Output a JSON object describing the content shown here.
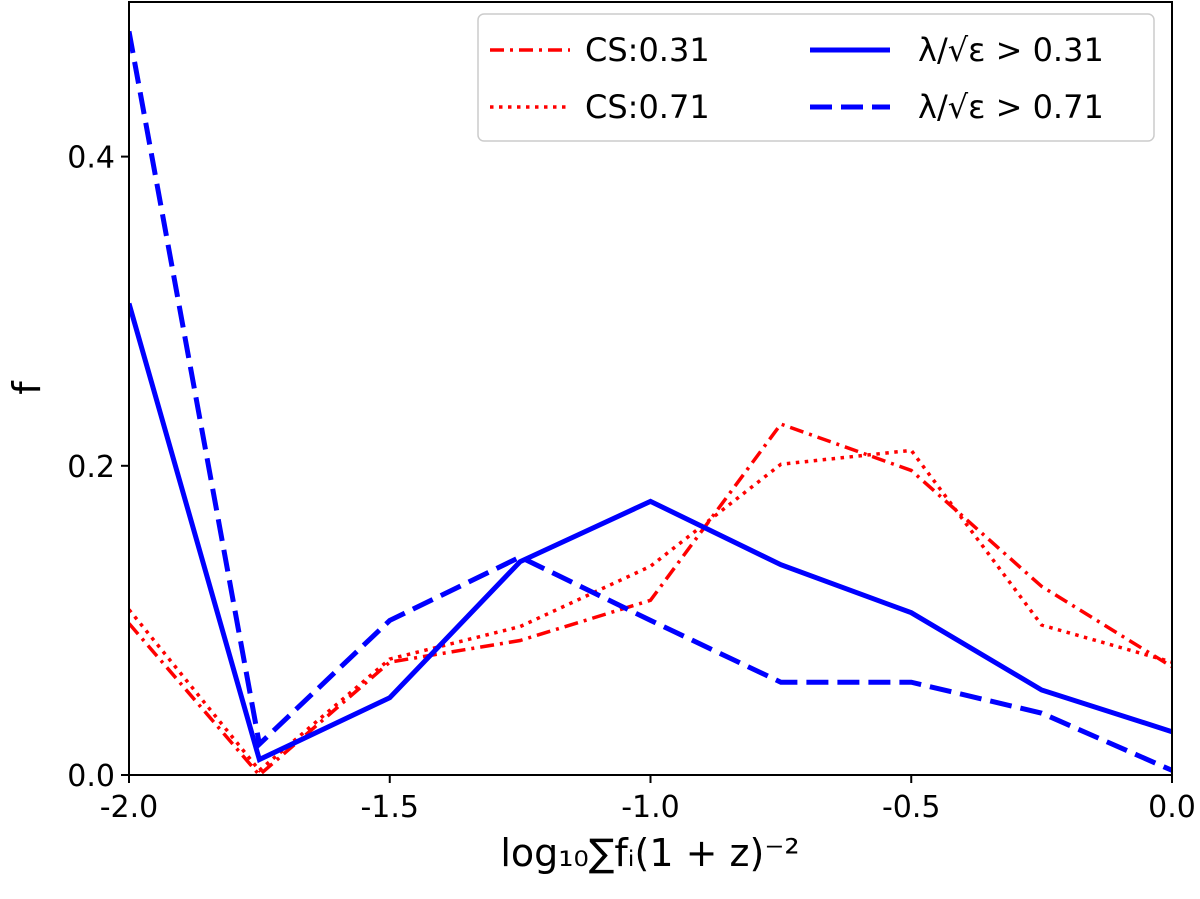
{
  "chart_data": {
    "type": "line",
    "title": "",
    "xlabel": "log₁₀∑fᵢ(1 + z)⁻²",
    "ylabel": "f",
    "xlim": [
      -2.0,
      0.0
    ],
    "ylim": [
      0.0,
      0.5
    ],
    "xticks": [
      -2.0,
      -1.5,
      -1.0,
      -0.5,
      0.0
    ],
    "xtick_labels": [
      "-2.0",
      "-1.5",
      "-1.0",
      "-0.5",
      "0.0"
    ],
    "yticks": [
      0.0,
      0.2,
      0.4
    ],
    "ytick_labels": [
      "0.0",
      "0.2",
      "0.4"
    ],
    "grid": false,
    "legend_position": "top-right",
    "x": [
      -2.0,
      -1.75,
      -1.5,
      -1.25,
      -1.0,
      -0.75,
      -0.5,
      -0.25,
      0.0
    ],
    "series": [
      {
        "name": "CS:0.31",
        "color": "#ff0000",
        "style": "dashdot",
        "values": [
          0.098,
          0.0,
          0.073,
          0.087,
          0.113,
          0.227,
          0.197,
          0.122,
          0.07
        ]
      },
      {
        "name": "CS:0.71",
        "color": "#ff0000",
        "style": "dotted",
        "values": [
          0.107,
          0.003,
          0.075,
          0.096,
          0.135,
          0.201,
          0.21,
          0.097,
          0.073
        ]
      },
      {
        "name": "λ/√ε > 0.31",
        "color": "#0000ff",
        "style": "solid",
        "values": [
          0.305,
          0.01,
          0.05,
          0.138,
          0.177,
          0.136,
          0.105,
          0.055,
          0.028
        ]
      },
      {
        "name": "λ/√ε > 0.71",
        "color": "#0000ff",
        "style": "dashed",
        "values": [
          0.481,
          0.02,
          0.1,
          0.141,
          0.1,
          0.06,
          0.06,
          0.04,
          0.003
        ]
      }
    ]
  }
}
